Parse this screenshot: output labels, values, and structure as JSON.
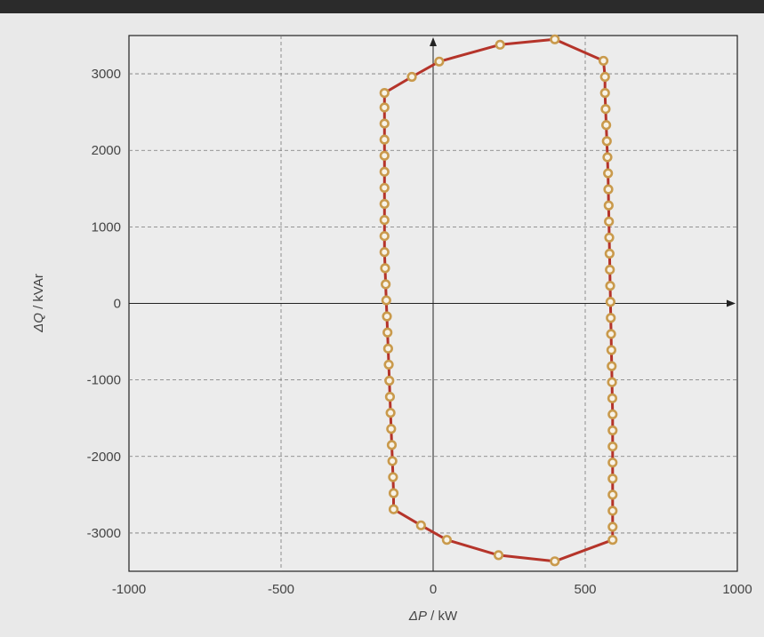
{
  "chart_data": {
    "type": "scatter",
    "title": "",
    "xlabel_symbol": "ΔP",
    "xlabel_unit": " / kW",
    "ylabel_symbol": "ΔQ",
    "ylabel_unit": " / kVAr",
    "xlim": [
      -1000,
      1000
    ],
    "ylim": [
      -3500,
      3500
    ],
    "xticks": [
      -1000,
      -500,
      0,
      500,
      1000
    ],
    "yticks": [
      -3000,
      -2000,
      -1000,
      0,
      1000,
      2000,
      3000
    ],
    "xtick_labels": [
      "-1000",
      "-500",
      "0",
      "500",
      "1000"
    ],
    "ytick_labels": [
      "-3000",
      "-2000",
      "-1000",
      "0",
      "1000",
      "2000",
      "3000"
    ],
    "grid": true,
    "colors": {
      "line": "#b5342a",
      "marker_edge": "#c99a4c",
      "marker_fill": "#f7f2e6",
      "grid": "#777777",
      "axis": "#222222"
    },
    "series": [
      {
        "values": [
          [
            400,
            3450
          ],
          [
            560,
            3170
          ],
          [
            565,
            2960
          ],
          [
            565,
            2750
          ],
          [
            567,
            2540
          ],
          [
            569,
            2330
          ],
          [
            571,
            2120
          ],
          [
            573,
            1910
          ],
          [
            575,
            1700
          ],
          [
            576,
            1490
          ],
          [
            577,
            1280
          ],
          [
            578,
            1070
          ],
          [
            579,
            860
          ],
          [
            580,
            650
          ],
          [
            581,
            440
          ],
          [
            582,
            230
          ],
          [
            583,
            20
          ],
          [
            584,
            -190
          ],
          [
            585,
            -400
          ],
          [
            586,
            -610
          ],
          [
            587,
            -820
          ],
          [
            588,
            -1030
          ],
          [
            589,
            -1240
          ],
          [
            590,
            -1450
          ],
          [
            590,
            -1660
          ],
          [
            590,
            -1870
          ],
          [
            590,
            -2080
          ],
          [
            590,
            -2290
          ],
          [
            590,
            -2500
          ],
          [
            590,
            -2710
          ],
          [
            590,
            -2920
          ],
          [
            590,
            -3090
          ],
          [
            400,
            -3370
          ],
          [
            215,
            -3290
          ],
          [
            45,
            -3090
          ],
          [
            -40,
            -2900
          ],
          [
            -130,
            -2690
          ],
          [
            -130,
            -2480
          ],
          [
            -132,
            -2270
          ],
          [
            -134,
            -2060
          ],
          [
            -136,
            -1850
          ],
          [
            -138,
            -1640
          ],
          [
            -140,
            -1430
          ],
          [
            -142,
            -1220
          ],
          [
            -144,
            -1010
          ],
          [
            -146,
            -800
          ],
          [
            -148,
            -590
          ],
          [
            -150,
            -380
          ],
          [
            -152,
            -170
          ],
          [
            -154,
            40
          ],
          [
            -156,
            250
          ],
          [
            -158,
            460
          ],
          [
            -160,
            670
          ],
          [
            -160,
            880
          ],
          [
            -160,
            1090
          ],
          [
            -160,
            1300
          ],
          [
            -160,
            1510
          ],
          [
            -160,
            1720
          ],
          [
            -160,
            1930
          ],
          [
            -160,
            2140
          ],
          [
            -160,
            2350
          ],
          [
            -160,
            2560
          ],
          [
            -160,
            2750
          ],
          [
            -70,
            2960
          ],
          [
            20,
            3160
          ],
          [
            220,
            3380
          ]
        ]
      }
    ]
  }
}
